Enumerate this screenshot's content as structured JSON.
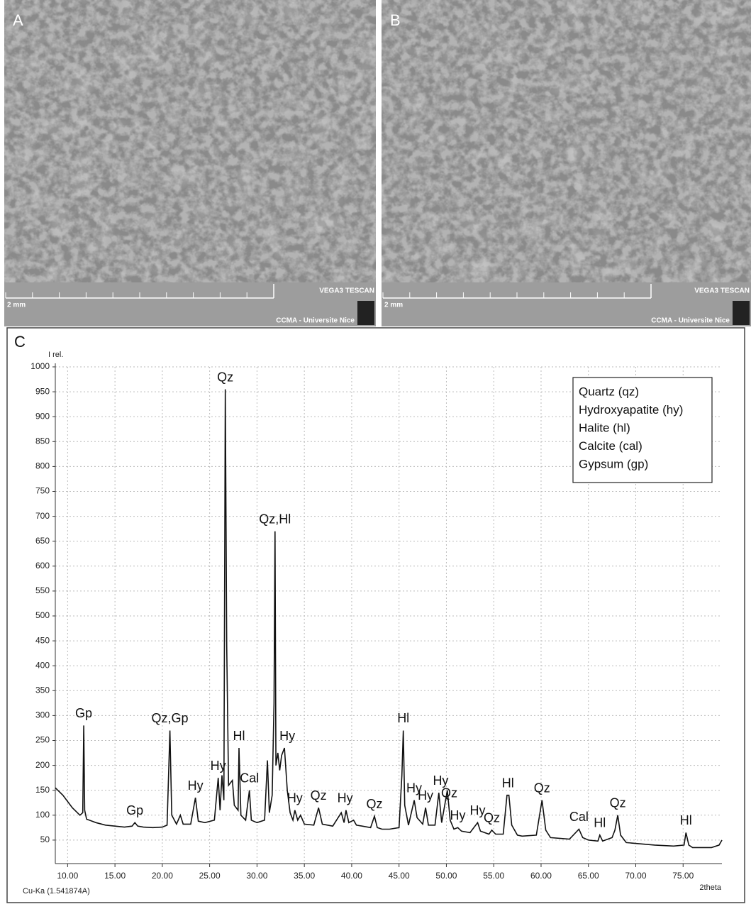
{
  "panels": [
    {
      "label": "A",
      "scale": "2 mm",
      "brand": "VEGA3 TESCAN",
      "credit": "CCMA - Universite Nice"
    },
    {
      "label": "B",
      "scale": "2 mm",
      "brand": "VEGA3 TESCAN",
      "credit": "CCMA - Universite Nice"
    }
  ],
  "chart_data": {
    "type": "line",
    "panel_label": "C",
    "y_label": "I rel.",
    "x_label": "2theta",
    "footnote": "Cu-Ka (1.541874A)",
    "color": "#111111",
    "grid": true,
    "xlim": [
      8.7,
      79.1
    ],
    "ylim": [
      0,
      1000
    ],
    "xticks": [
      {
        "value": 10,
        "label": "10.00"
      },
      {
        "value": 15,
        "label": "15.00"
      },
      {
        "value": 20,
        "label": "20.00"
      },
      {
        "value": 25,
        "label": "25.00"
      },
      {
        "value": 30,
        "label": "30.00"
      },
      {
        "value": 35,
        "label": "35.00"
      },
      {
        "value": 40,
        "label": "40.00"
      },
      {
        "value": 45,
        "label": "45.00"
      },
      {
        "value": 50,
        "label": "50.00"
      },
      {
        "value": 55,
        "label": "55.00"
      },
      {
        "value": 60,
        "label": "60.00"
      },
      {
        "value": 65,
        "label": "65.00"
      },
      {
        "value": 70,
        "label": "70.00"
      },
      {
        "value": 75,
        "label": "75.00"
      }
    ],
    "yticks": [
      50,
      100,
      150,
      200,
      250,
      300,
      350,
      400,
      450,
      500,
      550,
      600,
      650,
      700,
      750,
      800,
      850,
      900,
      950,
      1000
    ],
    "legend": [
      "Quartz (qz)",
      "Hydroxyapatite (hy)",
      "Halite (hl)",
      "Calcite (cal)",
      "Gypsum (gp)"
    ],
    "x": [
      8.7,
      9.5,
      10.5,
      11.3,
      11.6,
      11.7,
      11.8,
      12.0,
      13,
      14,
      15,
      16,
      16.8,
      17.1,
      17.4,
      18,
      19,
      20,
      20.5,
      20.8,
      21.0,
      21.5,
      21.9,
      22.2,
      23,
      23.5,
      23.8,
      24.5,
      25.5,
      25.9,
      26.1,
      26.3,
      26.5,
      26.65,
      26.8,
      27,
      27.4,
      27.6,
      28.0,
      28.1,
      28.3,
      28.8,
      29.2,
      29.4,
      30,
      30.8,
      31.1,
      31.3,
      31.6,
      31.8,
      31.9,
      32.0,
      32.2,
      32.4,
      32.6,
      32.9,
      33.2,
      33.5,
      33.8,
      34.0,
      34.3,
      34.6,
      35,
      36,
      36.5,
      36.9,
      38,
      38.9,
      39.2,
      39.4,
      39.7,
      40.2,
      40.5,
      42,
      42.4,
      42.7,
      43.2,
      44,
      45,
      45.3,
      45.45,
      45.6,
      46,
      46.6,
      46.9,
      47.5,
      47.8,
      48.1,
      48.8,
      49.2,
      49.5,
      50.1,
      50.4,
      50.8,
      51.2,
      51.6,
      52.5,
      53.3,
      53.6,
      54.5,
      54.8,
      55.2,
      56,
      56.4,
      56.6,
      56.9,
      57.5,
      58,
      59.5,
      60.1,
      60.5,
      61,
      63,
      64,
      64.4,
      65,
      66,
      66.2,
      66.5,
      67.5,
      67.8,
      68.1,
      68.4,
      69,
      72,
      74,
      75.1,
      75.3,
      75.6,
      76,
      78,
      78.8,
      79.1
    ],
    "values": [
      155,
      140,
      115,
      100,
      105,
      280,
      110,
      92,
      85,
      80,
      78,
      76,
      78,
      85,
      78,
      76,
      75,
      76,
      80,
      270,
      100,
      82,
      100,
      82,
      82,
      135,
      88,
      85,
      90,
      175,
      110,
      180,
      130,
      955,
      440,
      160,
      170,
      120,
      110,
      235,
      100,
      90,
      150,
      90,
      85,
      90,
      210,
      105,
      140,
      325,
      670,
      200,
      225,
      190,
      220,
      235,
      150,
      105,
      90,
      110,
      90,
      100,
      82,
      80,
      115,
      82,
      78,
      105,
      85,
      110,
      85,
      90,
      80,
      75,
      98,
      75,
      72,
      72,
      75,
      180,
      270,
      120,
      80,
      130,
      95,
      82,
      115,
      80,
      80,
      145,
      85,
      150,
      90,
      72,
      75,
      68,
      65,
      85,
      68,
      62,
      70,
      62,
      62,
      140,
      140,
      80,
      60,
      58,
      60,
      130,
      70,
      55,
      52,
      72,
      55,
      50,
      48,
      60,
      48,
      55,
      70,
      100,
      60,
      45,
      40,
      38,
      40,
      65,
      40,
      35,
      35,
      40,
      50
    ],
    "annotations": [
      {
        "text": "Gp",
        "x": 11.7,
        "y": 280
      },
      {
        "text": "Gp",
        "x": 17.1,
        "y": 85
      },
      {
        "text": "Qz,Gp",
        "x": 20.8,
        "y": 270
      },
      {
        "text": "Hy",
        "x": 23.5,
        "y": 135
      },
      {
        "text": "Hy",
        "x": 25.9,
        "y": 175
      },
      {
        "text": "Qz",
        "x": 26.65,
        "y": 955
      },
      {
        "text": "Hl",
        "x": 28.1,
        "y": 235
      },
      {
        "text": "Cal",
        "x": 29.2,
        "y": 150
      },
      {
        "text": "Qz,Hl",
        "x": 31.9,
        "y": 670
      },
      {
        "text": "Hy",
        "x": 33.2,
        "y": 235
      },
      {
        "text": "Hy",
        "x": 34.0,
        "y": 110
      },
      {
        "text": "Qz",
        "x": 36.5,
        "y": 115
      },
      {
        "text": "Hy",
        "x": 39.3,
        "y": 110
      },
      {
        "text": "Qz",
        "x": 42.4,
        "y": 98
      },
      {
        "text": "Hl",
        "x": 45.45,
        "y": 270
      },
      {
        "text": "Hy",
        "x": 46.6,
        "y": 130
      },
      {
        "text": "Hy",
        "x": 47.8,
        "y": 115
      },
      {
        "text": "Hy",
        "x": 49.4,
        "y": 145
      },
      {
        "text": "Qz",
        "x": 50.3,
        "y": 120
      },
      {
        "text": "Hy",
        "x": 51.2,
        "y": 75
      },
      {
        "text": "Hy",
        "x": 53.3,
        "y": 85
      },
      {
        "text": "Qz",
        "x": 54.8,
        "y": 70
      },
      {
        "text": "Hl",
        "x": 56.5,
        "y": 140
      },
      {
        "text": "Qz",
        "x": 60.1,
        "y": 130
      },
      {
        "text": "Cal",
        "x": 64,
        "y": 72
      },
      {
        "text": "Hl",
        "x": 66.2,
        "y": 60
      },
      {
        "text": "Qz",
        "x": 68.1,
        "y": 100
      },
      {
        "text": "Hl",
        "x": 75.3,
        "y": 65
      }
    ]
  }
}
